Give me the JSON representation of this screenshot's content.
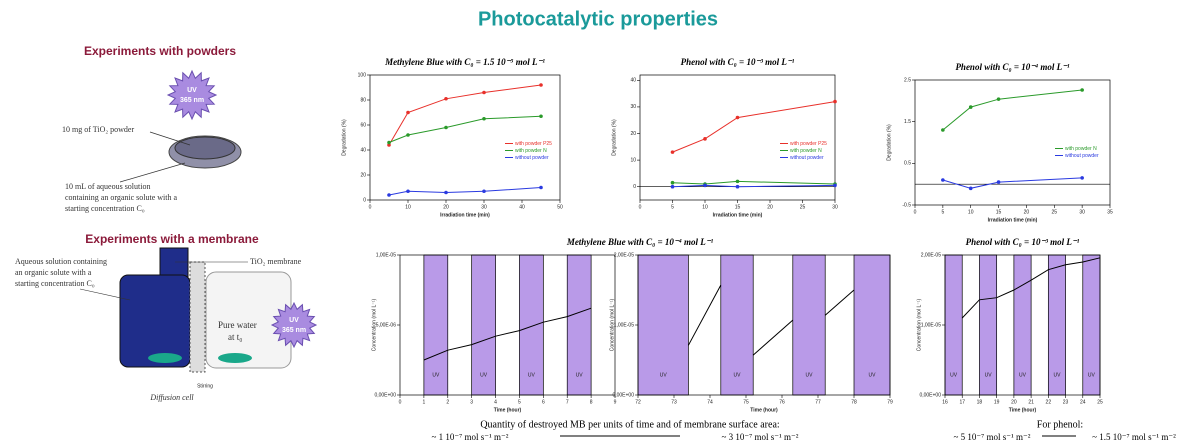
{
  "title": "Photocatalytic properties",
  "powders": {
    "heading": "Experiments with powders",
    "uv": [
      "UV",
      "365 nm"
    ],
    "powder_label": "10 mg of TiO₂ powder",
    "solution_label": [
      "10 mL of aqueous solution",
      "containing an organic solute with a",
      "starting concentration C₀"
    ]
  },
  "membrane": {
    "heading": "Experiments with a membrane",
    "solution_label": [
      "Aqueous solution containing",
      "an organic solute with a",
      "starting concentration C₀"
    ],
    "membrane_label": "TiO₂ membrane",
    "water_label": [
      "Pure water",
      "at t₀"
    ],
    "uv": [
      "UV",
      "365 nm"
    ],
    "stirring": "Stirring",
    "cell": "Diffusion cell"
  },
  "chart_data": [
    {
      "type": "line",
      "title": "Methylene Blue with C₀ = 1.5 10⁻⁵ mol L⁻¹",
      "x_label": "Irradiation time (min)",
      "y_label": "Degradation (%)",
      "x": [
        5,
        10,
        20,
        30,
        45
      ],
      "xlim": [
        0,
        50
      ],
      "xticks": [
        0,
        10,
        20,
        30,
        40,
        50
      ],
      "ylim": [
        0,
        100
      ],
      "yticks": [
        0,
        20,
        40,
        60,
        80,
        100
      ],
      "legend": "right",
      "series": [
        {
          "name": "with powder P25",
          "color": "#e8302a",
          "values": [
            44,
            70,
            81,
            86,
            92
          ]
        },
        {
          "name": "with powder N",
          "color": "#2a9a2a",
          "values": [
            46,
            52,
            58,
            65,
            67
          ]
        },
        {
          "name": "without powder",
          "color": "#2a3ae0",
          "values": [
            4,
            7,
            6,
            7,
            10
          ]
        }
      ]
    },
    {
      "type": "line",
      "title": "Phenol with C₀ = 10⁻³ mol L⁻¹",
      "x_label": "Irradiation time (min)",
      "y_label": "Degradation (%)",
      "x": [
        5,
        10,
        15,
        30
      ],
      "xlim": [
        0,
        30
      ],
      "xticks": [
        0,
        5,
        10,
        15,
        20,
        25,
        30
      ],
      "ylim": [
        -5,
        42
      ],
      "yticks": [
        0,
        10,
        20,
        30,
        40
      ],
      "legend": "right",
      "series": [
        {
          "name": "with powder P25",
          "color": "#e8302a",
          "values": [
            13,
            18,
            26,
            32
          ]
        },
        {
          "name": "with powder N",
          "color": "#2a9a2a",
          "values": [
            1.5,
            1,
            2,
            1
          ]
        },
        {
          "name": "without powder",
          "color": "#2a3ae0",
          "values": [
            0,
            0.5,
            0,
            0.5
          ]
        }
      ]
    },
    {
      "type": "line",
      "title": "Phenol with C₀ = 10⁻⁴ mol L⁻¹",
      "x_label": "Irradiation time (min)",
      "y_label": "Degradation (%)",
      "x": [
        5,
        10,
        15,
        30
      ],
      "xlim": [
        0,
        35
      ],
      "xticks": [
        0,
        5,
        10,
        15,
        20,
        25,
        30,
        35
      ],
      "ylim": [
        -0.5,
        2.5
      ],
      "yticks": [
        -0.5,
        0.5,
        1.5,
        2.5
      ],
      "legend": "right",
      "series": [
        {
          "name": "with powder N",
          "color": "#2a9a2a",
          "values": [
            1.3,
            1.85,
            2.04,
            2.26
          ]
        },
        {
          "name": "without powder",
          "color": "#2a3ae0",
          "values": [
            0.1,
            -0.1,
            0.05,
            0.15
          ]
        }
      ]
    },
    {
      "type": "line",
      "title": "Methylene Blue with C₀ = 10⁻⁴ mol L⁻¹",
      "x_label": "Time (hour)",
      "y_label": "Concentration (mol L⁻¹)",
      "x": [
        1,
        2,
        3,
        4,
        5,
        6,
        7,
        8
      ],
      "xlim": [
        0,
        9
      ],
      "xticks": [
        0,
        1,
        2,
        3,
        4,
        5,
        6,
        7,
        8,
        9
      ],
      "ylim": [
        0,
        1e-05
      ],
      "yticks": [
        {
          "value": 0,
          "label": "0,00E+00"
        },
        {
          "value": 5e-06,
          "label": "5,00E-06"
        },
        {
          "value": 1e-05,
          "label": "1,00E-05"
        }
      ],
      "uv_periods": [
        [
          1,
          2
        ],
        [
          3,
          4
        ],
        [
          5,
          6
        ],
        [
          7,
          8
        ]
      ],
      "uv_label": "UV",
      "uv_color": "#b99ae8",
      "series": [
        {
          "color": "#000000",
          "values": [
            2.5e-06,
            3.2e-06,
            3.6e-06,
            4.2e-06,
            4.6e-06,
            5.2e-06,
            5.6e-06,
            6.2e-06
          ]
        }
      ]
    },
    {
      "type": "line",
      "x_label": "Time (hour)",
      "y_label": "Concentration (mol L⁻¹)",
      "x": [
        73.4,
        74.3,
        74.5,
        75.2,
        76.3,
        76.5,
        77.2,
        78
      ],
      "xlim": [
        72,
        79
      ],
      "xticks": [
        72,
        73,
        74,
        75,
        76,
        77,
        78,
        79
      ],
      "ylim": [
        0,
        2e-05
      ],
      "yticks": [
        {
          "value": 0,
          "label": "0,00E+00"
        },
        {
          "value": 1e-05,
          "label": "1,00E-05"
        },
        {
          "value": 2e-05,
          "label": "2,00E-05"
        }
      ],
      "uv_periods": [
        [
          72,
          73.4
        ],
        [
          74.3,
          75.2
        ],
        [
          76.3,
          77.2
        ],
        [
          78,
          79
        ]
      ],
      "uv_label": "UV",
      "uv_color": "#b99ae8",
      "series": [
        {
          "color": "#000000",
          "values": [
            7.1e-06,
            1.57e-05,
            null,
            5.7e-06,
            1.07e-05,
            null,
            1.14e-05,
            1.5e-05
          ]
        }
      ]
    },
    {
      "type": "line",
      "title": "Phenol with C₀ = 10⁻³ mol L⁻¹",
      "x_label": "Time (hour)",
      "y_label": "Concentration (mol L⁻¹)",
      "x": [
        17,
        18,
        19,
        20,
        21,
        22,
        23,
        24,
        25
      ],
      "xlim": [
        16,
        25
      ],
      "xticks": [
        16,
        17,
        18,
        19,
        20,
        21,
        22,
        23,
        24,
        25
      ],
      "ylim": [
        0,
        2e-05
      ],
      "yticks": [
        {
          "value": 0,
          "label": "0,00E+00"
        },
        {
          "value": 1e-05,
          "label": "1,00E-05"
        },
        {
          "value": 2e-05,
          "label": "2,00E-05"
        }
      ],
      "uv_periods": [
        [
          16,
          17
        ],
        [
          18,
          19
        ],
        [
          20,
          21
        ],
        [
          22,
          23
        ],
        [
          24,
          25
        ]
      ],
      "uv_label": "UV",
      "uv_color": "#b99ae8",
      "series": [
        {
          "color": "#000000",
          "values": [
            1.1e-05,
            1.36e-05,
            1.39e-05,
            1.5e-05,
            1.64e-05,
            1.79e-05,
            1.86e-05,
            1.9e-05,
            1.96e-05
          ]
        }
      ]
    }
  ],
  "summary": {
    "mb_heading": "Quantity of destroyed MB per units of time and of membrane surface area:",
    "mb_from": "~ 1 10⁻⁷ mol s⁻¹ m⁻²",
    "mb_to": "~ 3 10⁻⁷ mol s⁻¹ m⁻²",
    "phenol_heading": "For phenol:",
    "phenol_from": "~ 5 10⁻⁷ mol s⁻¹ m⁻²",
    "phenol_to": "~ 1.5 10⁻⁷ mol s⁻¹ m⁻²"
  }
}
